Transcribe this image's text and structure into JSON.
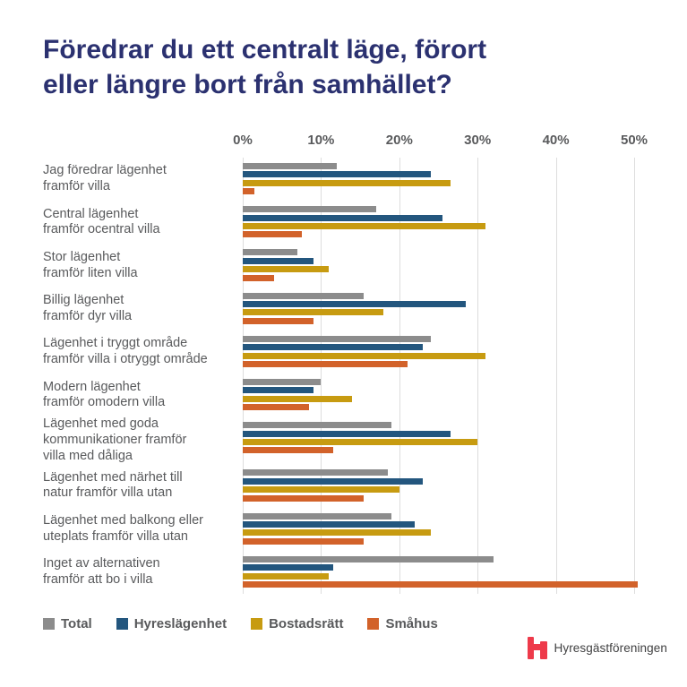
{
  "header": {
    "title_lines": [
      "Föredrar du ett centralt läge, förort",
      "eller längre bort från samhället?"
    ]
  },
  "chart_data": {
    "type": "bar",
    "orientation": "horizontal",
    "title": "Föredrar du ett centralt läge, förort eller längre bort från samhället?",
    "xlabel": "",
    "ylabel": "",
    "x_axis": {
      "unit": "%",
      "min": 0,
      "max": 50,
      "tick_values": [
        0,
        10,
        20,
        30,
        40,
        50
      ],
      "tick_labels": [
        "0%",
        "10%",
        "20%",
        "30%",
        "40%",
        "50%"
      ]
    },
    "grid": true,
    "legend_position": "bottom",
    "categories": [
      "Jag föredrar lägenhet\nframför villa",
      "Central lägenhet\nframför ocentral villa",
      "Stor lägenhet\nframför liten villa",
      "Billig lägenhet\nframför dyr villa",
      "Lägenhet i tryggt område\nframför villa i otryggt område",
      "Modern lägenhet\nframför omodern villa",
      "Lägenhet med goda\nkommunikationer framför\nvilla med dåliga",
      "Lägenhet med närhet till\nnatur framför villa utan",
      "Lägenhet med balkong eller\nuteplats framför villa utan",
      "Inget av alternativen\nframför att bo i villa"
    ],
    "series": [
      {
        "name": "Total",
        "color": "#8c8c8c",
        "values": [
          12,
          17,
          7,
          15.5,
          24,
          10,
          19,
          18.5,
          19,
          32
        ]
      },
      {
        "name": "Hyreslägenhet",
        "color": "#23567e",
        "values": [
          24,
          25.5,
          9,
          28.5,
          23,
          9,
          26.5,
          23,
          22,
          11.5
        ]
      },
      {
        "name": "Bostadsrätt",
        "color": "#c79b11",
        "values": [
          26.5,
          31,
          11,
          18,
          31,
          14,
          30,
          20,
          24,
          11
        ]
      },
      {
        "name": "Småhus",
        "color": "#d2622a",
        "values": [
          1.5,
          7.5,
          4,
          9,
          21,
          8.5,
          11.5,
          15.5,
          15.5,
          50.5
        ]
      }
    ]
  },
  "legend": {
    "items": [
      {
        "label": "Total",
        "color": "#8c8c8c"
      },
      {
        "label": "Hyreslägenhet",
        "color": "#23567e"
      },
      {
        "label": "Bostadsrätt",
        "color": "#c79b11"
      },
      {
        "label": "Småhus",
        "color": "#d2622a"
      }
    ]
  },
  "footer": {
    "brand": "Hyresgästföreningen",
    "logo_color": "#ee3a4a"
  },
  "style": {
    "title_color": "#2b3170",
    "text_color": "#595a5c",
    "gridline_color": "#dddddd"
  }
}
